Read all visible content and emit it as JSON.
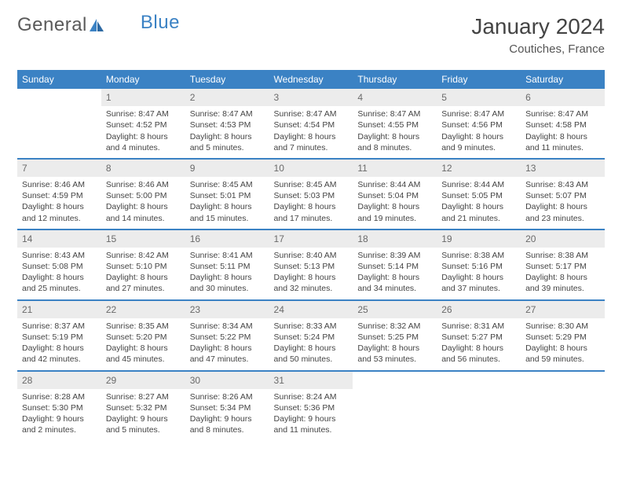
{
  "brand": {
    "part1": "General",
    "part2": "Blue"
  },
  "title": "January 2024",
  "location": "Coutiches, France",
  "colors": {
    "header_bg": "#3b82c4",
    "header_fg": "#ffffff",
    "daynum_bg": "#ececec",
    "daynum_fg": "#6a6a6a",
    "border": "#3b82c4",
    "text": "#444444",
    "page_bg": "#ffffff"
  },
  "weekdays": [
    "Sunday",
    "Monday",
    "Tuesday",
    "Wednesday",
    "Thursday",
    "Friday",
    "Saturday"
  ],
  "weeks": [
    [
      {
        "n": "",
        "sr": "",
        "ss": "",
        "dl": ""
      },
      {
        "n": "1",
        "sr": "Sunrise: 8:47 AM",
        "ss": "Sunset: 4:52 PM",
        "dl": "Daylight: 8 hours and 4 minutes."
      },
      {
        "n": "2",
        "sr": "Sunrise: 8:47 AM",
        "ss": "Sunset: 4:53 PM",
        "dl": "Daylight: 8 hours and 5 minutes."
      },
      {
        "n": "3",
        "sr": "Sunrise: 8:47 AM",
        "ss": "Sunset: 4:54 PM",
        "dl": "Daylight: 8 hours and 7 minutes."
      },
      {
        "n": "4",
        "sr": "Sunrise: 8:47 AM",
        "ss": "Sunset: 4:55 PM",
        "dl": "Daylight: 8 hours and 8 minutes."
      },
      {
        "n": "5",
        "sr": "Sunrise: 8:47 AM",
        "ss": "Sunset: 4:56 PM",
        "dl": "Daylight: 8 hours and 9 minutes."
      },
      {
        "n": "6",
        "sr": "Sunrise: 8:47 AM",
        "ss": "Sunset: 4:58 PM",
        "dl": "Daylight: 8 hours and 11 minutes."
      }
    ],
    [
      {
        "n": "7",
        "sr": "Sunrise: 8:46 AM",
        "ss": "Sunset: 4:59 PM",
        "dl": "Daylight: 8 hours and 12 minutes."
      },
      {
        "n": "8",
        "sr": "Sunrise: 8:46 AM",
        "ss": "Sunset: 5:00 PM",
        "dl": "Daylight: 8 hours and 14 minutes."
      },
      {
        "n": "9",
        "sr": "Sunrise: 8:45 AM",
        "ss": "Sunset: 5:01 PM",
        "dl": "Daylight: 8 hours and 15 minutes."
      },
      {
        "n": "10",
        "sr": "Sunrise: 8:45 AM",
        "ss": "Sunset: 5:03 PM",
        "dl": "Daylight: 8 hours and 17 minutes."
      },
      {
        "n": "11",
        "sr": "Sunrise: 8:44 AM",
        "ss": "Sunset: 5:04 PM",
        "dl": "Daylight: 8 hours and 19 minutes."
      },
      {
        "n": "12",
        "sr": "Sunrise: 8:44 AM",
        "ss": "Sunset: 5:05 PM",
        "dl": "Daylight: 8 hours and 21 minutes."
      },
      {
        "n": "13",
        "sr": "Sunrise: 8:43 AM",
        "ss": "Sunset: 5:07 PM",
        "dl": "Daylight: 8 hours and 23 minutes."
      }
    ],
    [
      {
        "n": "14",
        "sr": "Sunrise: 8:43 AM",
        "ss": "Sunset: 5:08 PM",
        "dl": "Daylight: 8 hours and 25 minutes."
      },
      {
        "n": "15",
        "sr": "Sunrise: 8:42 AM",
        "ss": "Sunset: 5:10 PM",
        "dl": "Daylight: 8 hours and 27 minutes."
      },
      {
        "n": "16",
        "sr": "Sunrise: 8:41 AM",
        "ss": "Sunset: 5:11 PM",
        "dl": "Daylight: 8 hours and 30 minutes."
      },
      {
        "n": "17",
        "sr": "Sunrise: 8:40 AM",
        "ss": "Sunset: 5:13 PM",
        "dl": "Daylight: 8 hours and 32 minutes."
      },
      {
        "n": "18",
        "sr": "Sunrise: 8:39 AM",
        "ss": "Sunset: 5:14 PM",
        "dl": "Daylight: 8 hours and 34 minutes."
      },
      {
        "n": "19",
        "sr": "Sunrise: 8:38 AM",
        "ss": "Sunset: 5:16 PM",
        "dl": "Daylight: 8 hours and 37 minutes."
      },
      {
        "n": "20",
        "sr": "Sunrise: 8:38 AM",
        "ss": "Sunset: 5:17 PM",
        "dl": "Daylight: 8 hours and 39 minutes."
      }
    ],
    [
      {
        "n": "21",
        "sr": "Sunrise: 8:37 AM",
        "ss": "Sunset: 5:19 PM",
        "dl": "Daylight: 8 hours and 42 minutes."
      },
      {
        "n": "22",
        "sr": "Sunrise: 8:35 AM",
        "ss": "Sunset: 5:20 PM",
        "dl": "Daylight: 8 hours and 45 minutes."
      },
      {
        "n": "23",
        "sr": "Sunrise: 8:34 AM",
        "ss": "Sunset: 5:22 PM",
        "dl": "Daylight: 8 hours and 47 minutes."
      },
      {
        "n": "24",
        "sr": "Sunrise: 8:33 AM",
        "ss": "Sunset: 5:24 PM",
        "dl": "Daylight: 8 hours and 50 minutes."
      },
      {
        "n": "25",
        "sr": "Sunrise: 8:32 AM",
        "ss": "Sunset: 5:25 PM",
        "dl": "Daylight: 8 hours and 53 minutes."
      },
      {
        "n": "26",
        "sr": "Sunrise: 8:31 AM",
        "ss": "Sunset: 5:27 PM",
        "dl": "Daylight: 8 hours and 56 minutes."
      },
      {
        "n": "27",
        "sr": "Sunrise: 8:30 AM",
        "ss": "Sunset: 5:29 PM",
        "dl": "Daylight: 8 hours and 59 minutes."
      }
    ],
    [
      {
        "n": "28",
        "sr": "Sunrise: 8:28 AM",
        "ss": "Sunset: 5:30 PM",
        "dl": "Daylight: 9 hours and 2 minutes."
      },
      {
        "n": "29",
        "sr": "Sunrise: 8:27 AM",
        "ss": "Sunset: 5:32 PM",
        "dl": "Daylight: 9 hours and 5 minutes."
      },
      {
        "n": "30",
        "sr": "Sunrise: 8:26 AM",
        "ss": "Sunset: 5:34 PM",
        "dl": "Daylight: 9 hours and 8 minutes."
      },
      {
        "n": "31",
        "sr": "Sunrise: 8:24 AM",
        "ss": "Sunset: 5:36 PM",
        "dl": "Daylight: 9 hours and 11 minutes."
      },
      {
        "n": "",
        "sr": "",
        "ss": "",
        "dl": ""
      },
      {
        "n": "",
        "sr": "",
        "ss": "",
        "dl": ""
      },
      {
        "n": "",
        "sr": "",
        "ss": "",
        "dl": ""
      }
    ]
  ]
}
